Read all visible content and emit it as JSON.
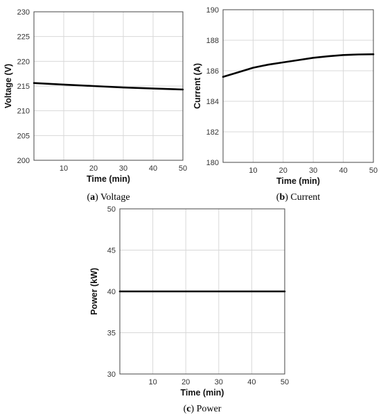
{
  "chart_data": [
    {
      "type": "line",
      "caption_letter": "a",
      "caption_text": "Voltage",
      "xlabel": "Time (min)",
      "ylabel": "Voltage (V)",
      "xlim": [
        0,
        50
      ],
      "ylim": [
        200,
        230
      ],
      "xticks": [
        10,
        20,
        30,
        40,
        50
      ],
      "yticks": [
        200,
        205,
        210,
        215,
        220,
        225,
        230
      ],
      "grid": true,
      "series": [
        {
          "x": [
            0,
            10,
            20,
            30,
            40,
            50
          ],
          "values": [
            215.6,
            215.3,
            215.0,
            214.7,
            214.5,
            214.3
          ]
        }
      ]
    },
    {
      "type": "line",
      "caption_letter": "b",
      "caption_text": "Current",
      "xlabel": "Time (min)",
      "ylabel": "Current (A)",
      "xlim": [
        0,
        50
      ],
      "ylim": [
        180,
        190
      ],
      "xticks": [
        10,
        20,
        30,
        40,
        50
      ],
      "yticks": [
        180,
        182,
        184,
        186,
        188,
        190
      ],
      "grid": true,
      "series": [
        {
          "x": [
            0,
            5,
            10,
            15,
            20,
            25,
            30,
            35,
            40,
            45,
            50
          ],
          "values": [
            185.6,
            185.9,
            186.2,
            186.4,
            186.55,
            186.7,
            186.85,
            186.95,
            187.03,
            187.07,
            187.08
          ]
        }
      ]
    },
    {
      "type": "line",
      "caption_letter": "c",
      "caption_text": "Power",
      "xlabel": "Time (min)",
      "ylabel": "Power (kW)",
      "xlim": [
        0,
        50
      ],
      "ylim": [
        30,
        50
      ],
      "xticks": [
        10,
        20,
        30,
        40,
        50
      ],
      "yticks": [
        30,
        35,
        40,
        45,
        50
      ],
      "grid": true,
      "series": [
        {
          "x": [
            0,
            50
          ],
          "values": [
            40,
            40
          ]
        }
      ]
    }
  ]
}
